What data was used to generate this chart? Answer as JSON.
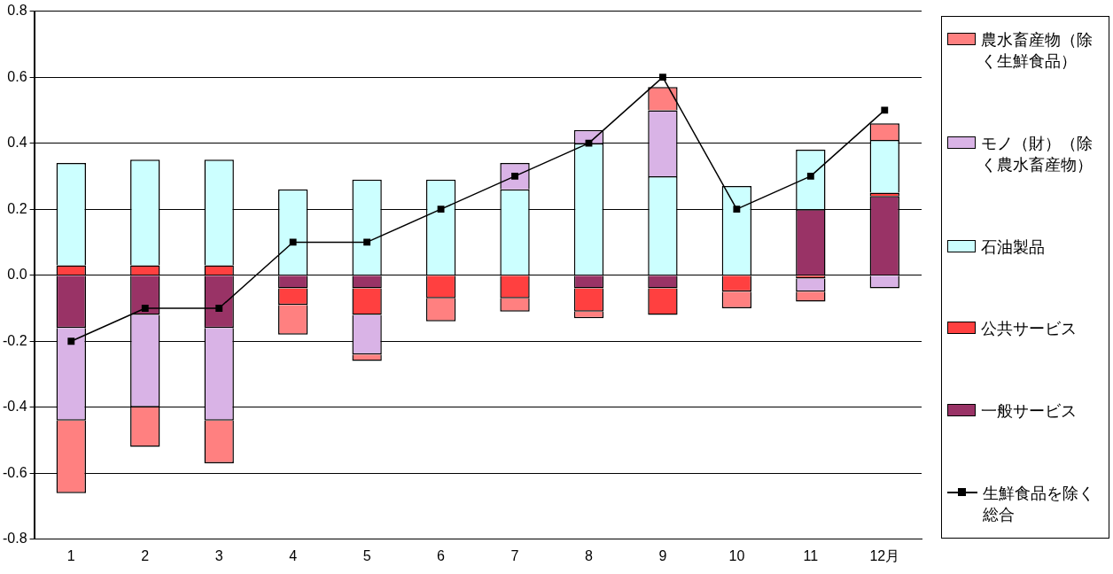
{
  "chart_data": {
    "type": "bar",
    "stacked": true,
    "categories": [
      "1",
      "2",
      "3",
      "4",
      "5",
      "6",
      "7",
      "8",
      "9",
      "10",
      "11",
      "12月"
    ],
    "series": [
      {
        "name": "一般サービス",
        "color": "#993366",
        "values": [
          -0.16,
          -0.12,
          -0.16,
          -0.04,
          -0.04,
          0,
          0,
          -0.04,
          -0.04,
          0,
          0.2,
          0.24
        ]
      },
      {
        "name": "公共サービス",
        "color": "#ff4040",
        "values": [
          0.03,
          0.03,
          0.03,
          -0.05,
          -0.08,
          -0.07,
          -0.07,
          -0.07,
          -0.08,
          -0.05,
          -0.01,
          0.01
        ]
      },
      {
        "name": "石油製品",
        "color": "#ccffff",
        "values": [
          0.31,
          0.32,
          0.32,
          0.26,
          0.29,
          0.29,
          0.26,
          0.4,
          0.3,
          0.27,
          0.18,
          0.16
        ]
      },
      {
        "name": "モノ（財）（除く農水畜産物）",
        "color": "#d9b3e6",
        "values": [
          -0.28,
          -0.28,
          -0.28,
          0,
          -0.12,
          0,
          0.08,
          0.04,
          0.2,
          0,
          -0.04,
          -0.04
        ]
      },
      {
        "name": "農水畜産物（除く生鮮食品）",
        "color": "#ff8080",
        "values": [
          -0.22,
          -0.12,
          -0.13,
          -0.09,
          -0.02,
          -0.07,
          -0.04,
          -0.02,
          0.07,
          -0.05,
          -0.03,
          0.05
        ]
      },
      {
        "name": "生鮮食品を除く総合",
        "type": "line",
        "color": "#000000",
        "values": [
          -0.2,
          -0.1,
          -0.1,
          0.1,
          0.1,
          0.2,
          0.3,
          0.4,
          0.6,
          0.2,
          0.3,
          0.5
        ]
      }
    ],
    "ylim": [
      -0.8,
      0.8
    ],
    "yticks": [
      -0.8,
      -0.6,
      -0.4,
      -0.2,
      {
        "value": 0,
        "label": "0.0"
      },
      0.2,
      0.4,
      0.6,
      0.8
    ],
    "grid": "y",
    "legend": "right",
    "marker": "square",
    "line_style": "solid"
  }
}
